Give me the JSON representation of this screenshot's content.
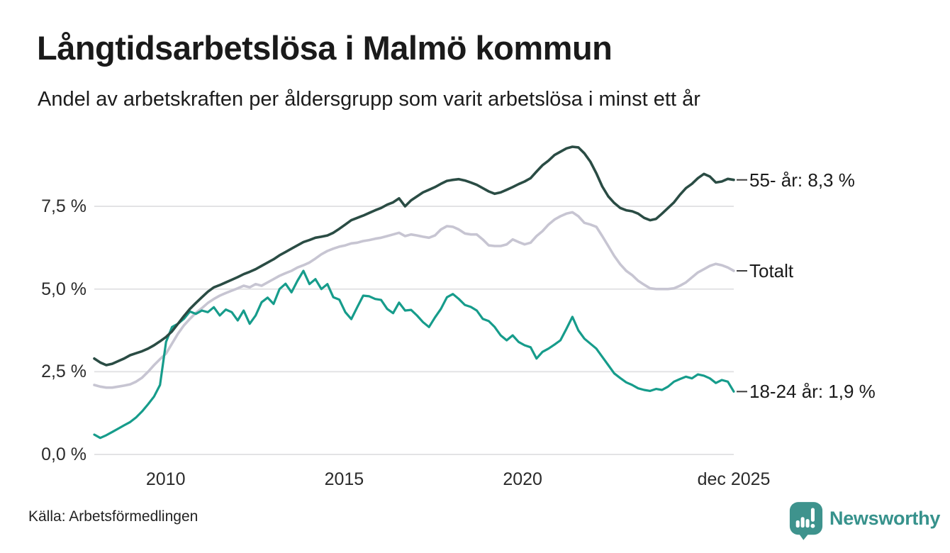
{
  "header": {
    "title": "Långtidsarbetslösa i Malmö kommun",
    "subtitle": "Andel av arbetskraften per åldersgrupp som varit arbetslösa i minst ett år"
  },
  "footer": {
    "source": "Källa: Arbetsförmedlingen",
    "brand": "Newsworthy"
  },
  "colors": {
    "series_55": "#2a4c44",
    "series_total": "#c7c5d2",
    "series_18_24": "#169c8b",
    "gridline": "#e3e3e5",
    "connector": "#3d3d3d",
    "brand_teal": "#3e938d"
  },
  "chart_data": {
    "type": "line",
    "title": "Långtidsarbetslösa i Malmö kommun",
    "subtitle": "Andel av arbetskraften per åldersgrupp som varit arbetslösa i minst ett år",
    "unit": "%",
    "grid": true,
    "x_start": "jan 2008",
    "x_end": "dec 2025",
    "x_ticks": [
      "2010",
      "2015",
      "2020",
      "dec 2025"
    ],
    "x_tick_months": [
      24,
      84,
      144,
      215
    ],
    "y_ticks": [
      "0,0 %",
      "2,5 %",
      "5,0 %",
      "7,5 %"
    ],
    "y_tick_values": [
      0,
      2.5,
      5,
      7.5
    ],
    "ylim": [
      0,
      9.7
    ],
    "sampling": "ca varannan månad jan 2008–dec 2025",
    "series": [
      {
        "name": "55- år",
        "end_label": "55- år: 8,3 %",
        "last_value": 8.3,
        "color": "#2a4c44",
        "values": [
          2.9,
          2.78,
          2.7,
          2.74,
          2.82,
          2.9,
          3.0,
          3.06,
          3.12,
          3.2,
          3.3,
          3.42,
          3.55,
          3.72,
          3.95,
          4.18,
          4.4,
          4.58,
          4.75,
          4.92,
          5.05,
          5.12,
          5.2,
          5.28,
          5.36,
          5.45,
          5.52,
          5.6,
          5.7,
          5.8,
          5.9,
          6.02,
          6.12,
          6.22,
          6.32,
          6.42,
          6.48,
          6.55,
          6.58,
          6.62,
          6.7,
          6.82,
          6.95,
          7.08,
          7.15,
          7.22,
          7.3,
          7.38,
          7.45,
          7.55,
          7.62,
          7.74,
          7.5,
          7.68,
          7.8,
          7.92,
          8.0,
          8.08,
          8.18,
          8.27,
          8.3,
          8.32,
          8.28,
          8.22,
          8.15,
          8.05,
          7.95,
          7.88,
          7.92,
          8.0,
          8.08,
          8.17,
          8.25,
          8.35,
          8.55,
          8.74,
          8.88,
          9.05,
          9.15,
          9.25,
          9.3,
          9.28,
          9.1,
          8.85,
          8.5,
          8.1,
          7.8,
          7.6,
          7.45,
          7.38,
          7.35,
          7.28,
          7.15,
          7.08,
          7.12,
          7.28,
          7.45,
          7.62,
          7.85,
          8.05,
          8.18,
          8.35,
          8.48,
          8.4,
          8.22,
          8.25,
          8.33,
          8.3
        ]
      },
      {
        "name": "Totalt",
        "end_label": "Totalt",
        "last_value": 5.55,
        "color": "#c7c5d2",
        "values": [
          2.1,
          2.05,
          2.02,
          2.02,
          2.05,
          2.08,
          2.12,
          2.2,
          2.32,
          2.5,
          2.7,
          2.88,
          3.05,
          3.35,
          3.65,
          3.9,
          4.1,
          4.28,
          4.42,
          4.58,
          4.7,
          4.8,
          4.88,
          4.95,
          5.02,
          5.1,
          5.05,
          5.15,
          5.1,
          5.2,
          5.3,
          5.4,
          5.48,
          5.55,
          5.65,
          5.72,
          5.8,
          5.92,
          6.05,
          6.15,
          6.22,
          6.28,
          6.32,
          6.38,
          6.4,
          6.45,
          6.48,
          6.52,
          6.55,
          6.6,
          6.65,
          6.7,
          6.6,
          6.65,
          6.62,
          6.58,
          6.55,
          6.62,
          6.8,
          6.9,
          6.88,
          6.8,
          6.68,
          6.65,
          6.65,
          6.5,
          6.32,
          6.3,
          6.3,
          6.35,
          6.5,
          6.42,
          6.35,
          6.4,
          6.6,
          6.75,
          6.95,
          7.1,
          7.2,
          7.28,
          7.32,
          7.2,
          7.0,
          6.95,
          6.88,
          6.6,
          6.3,
          6.0,
          5.75,
          5.55,
          5.42,
          5.25,
          5.13,
          5.02,
          5.0,
          5.0,
          5.0,
          5.02,
          5.1,
          5.2,
          5.35,
          5.5,
          5.6,
          5.7,
          5.76,
          5.72,
          5.65,
          5.55
        ]
      },
      {
        "name": "18-24 år",
        "end_label": "18-24 år: 1,9 %",
        "last_value": 1.9,
        "color": "#169c8b",
        "values": [
          0.6,
          0.5,
          0.58,
          0.68,
          0.78,
          0.88,
          0.98,
          1.12,
          1.3,
          1.52,
          1.75,
          2.1,
          3.4,
          3.85,
          3.95,
          4.1,
          4.32,
          4.25,
          4.35,
          4.3,
          4.45,
          4.2,
          4.38,
          4.3,
          4.05,
          4.35,
          3.95,
          4.2,
          4.6,
          4.74,
          4.55,
          5.0,
          5.16,
          4.9,
          5.25,
          5.55,
          5.15,
          5.3,
          5.0,
          5.15,
          4.75,
          4.68,
          4.3,
          4.09,
          4.45,
          4.8,
          4.78,
          4.7,
          4.67,
          4.4,
          4.27,
          4.59,
          4.35,
          4.37,
          4.2,
          4.0,
          3.85,
          4.14,
          4.4,
          4.75,
          4.85,
          4.7,
          4.52,
          4.46,
          4.35,
          4.1,
          4.03,
          3.85,
          3.6,
          3.45,
          3.6,
          3.4,
          3.3,
          3.24,
          2.9,
          3.1,
          3.2,
          3.32,
          3.45,
          3.8,
          4.16,
          3.75,
          3.5,
          3.35,
          3.2,
          2.95,
          2.7,
          2.45,
          2.31,
          2.18,
          2.1,
          2.0,
          1.95,
          1.92,
          1.98,
          1.95,
          2.05,
          2.2,
          2.28,
          2.35,
          2.3,
          2.42,
          2.38,
          2.3,
          2.16,
          2.25,
          2.2,
          1.9
        ]
      }
    ]
  }
}
